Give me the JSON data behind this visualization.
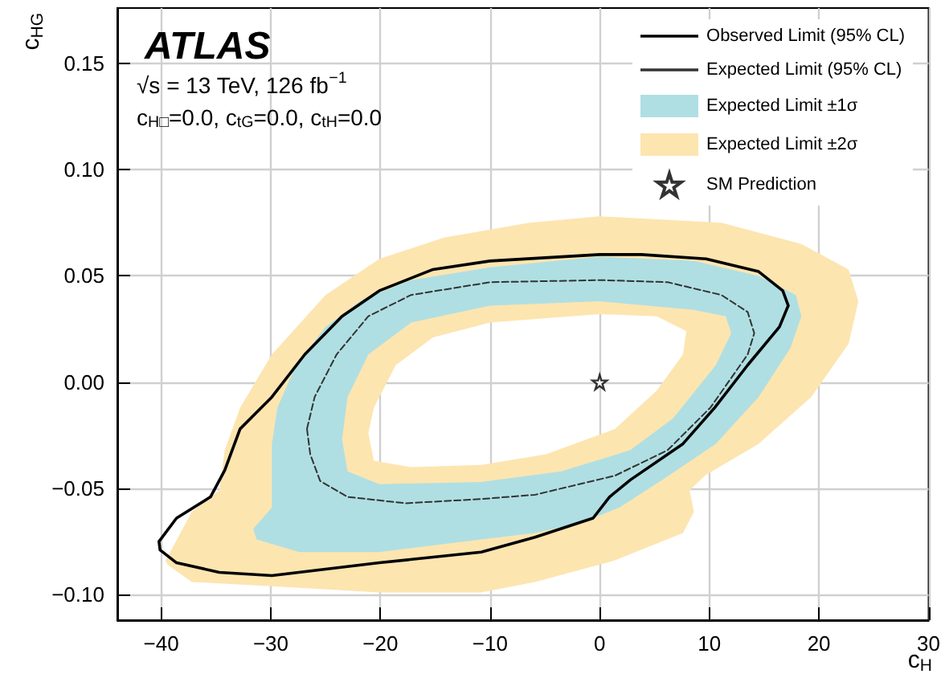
{
  "chart_data": {
    "type": "line",
    "title": "ATLAS",
    "annotations": [
      "√s = 13 TeV, 126 fb$^{−1}$",
      "c$_{H□}$=0.0, c$_{tG}$=0.0, c$_{tH}$=0.0"
    ],
    "xlabel": "c$_{H}$",
    "ylabel": "c$_{HG}$",
    "xlim": [
      -44,
      30
    ],
    "ylim": [
      -0.112,
      0.176
    ],
    "xticks": [
      {
        "value": -40,
        "label": "−40"
      },
      {
        "value": -30,
        "label": "−30"
      },
      {
        "value": -20,
        "label": "−20"
      },
      {
        "value": -10,
        "label": "−10"
      },
      0,
      10,
      20,
      30
    ],
    "yticks": [
      {
        "value": -0.1,
        "label": "−0.10"
      },
      {
        "value": -0.05,
        "label": "−0.05"
      },
      {
        "value": 0,
        "label": "0.00"
      },
      0.05,
      {
        "value": 0.1,
        "label": "0.10"
      },
      0.15
    ],
    "grid": true,
    "legend": "top right",
    "series": [
      {
        "name": "Observed Limit (95% CL)",
        "color": "#000000",
        "line_style": "solid",
        "marker": "none",
        "x": [
          -40.2,
          -38.6,
          -35.5,
          -34.2,
          -32.8,
          -29.9,
          -26.9,
          -23.5,
          -20.1,
          -15.2,
          -10,
          0,
          3.8,
          9.7,
          14.5,
          16.7,
          17.2,
          null,
          -40.2,
          -40.1,
          -38.6,
          -34.7,
          -29.9,
          -20.1,
          -10.8,
          -5.9,
          -0.6,
          0.9,
          2.8,
          7.6,
          10.5,
          13.5,
          16.4,
          17.2
        ],
        "values": [
          -0.075,
          -0.064,
          -0.054,
          -0.0415,
          -0.022,
          -0.007,
          0.013,
          0.031,
          0.043,
          0.053,
          0.057,
          0.06,
          0.06,
          0.058,
          0.052,
          0.043,
          0.036,
          null,
          -0.075,
          -0.079,
          -0.085,
          -0.0895,
          -0.091,
          -0.085,
          -0.08,
          -0.073,
          -0.064,
          -0.054,
          -0.046,
          -0.029,
          -0.012,
          0.008,
          0.026,
          0.036
        ]
      },
      {
        "name": "Expected Limit (95% CL)",
        "color": "#333333",
        "line_style": "dashed",
        "marker": "none",
        "x": [
          -26.7,
          -26,
          -24,
          -21.1,
          -17.2,
          -10,
          0,
          6.2,
          11.1,
          13.5,
          14.1,
          null,
          -26.7,
          -26.4,
          -25.5,
          -23,
          -17.7,
          -10.8,
          -5.9,
          1.4,
          6.2,
          10.1,
          13.5,
          14.1
        ],
        "values": [
          -0.022,
          -0.007,
          0.013,
          0.031,
          0.041,
          0.047,
          0.048,
          0.047,
          0.041,
          0.033,
          0.023,
          null,
          -0.022,
          -0.034,
          -0.0465,
          -0.054,
          -0.057,
          -0.055,
          -0.053,
          -0.044,
          -0.032,
          -0.012,
          0.013,
          0.023
        ]
      },
      {
        "name": "Expected Limit ±1σ",
        "type": "area",
        "color": "#afdfe3",
        "x": [
          -31.6,
          -29.9,
          -29.9,
          -29.4,
          -27.7,
          -25,
          -21.6,
          -17.2,
          -10,
          0,
          8.6,
          14.5,
          17.9,
          18.4,
          17.4,
          14.5,
          10.6,
          5.7,
          1.8,
          -1.6,
          -5.9,
          -10.8,
          -20.1,
          -27.4,
          -31.3,
          null,
          -23,
          -20.1,
          -10.8,
          -3.5,
          2.8,
          6.7,
          10.6,
          12,
          11.5,
          8.6,
          0,
          -10,
          -17.2,
          -21.1,
          -23,
          -23.5
        ],
        "values": [
          -0.069,
          -0.059,
          -0.029,
          -0.012,
          0.008,
          0.026,
          0.039,
          0.048,
          0.054,
          0.059,
          0.057,
          0.05,
          0.041,
          0.031,
          0.016,
          -0.007,
          -0.029,
          -0.046,
          -0.059,
          -0.066,
          -0.071,
          -0.074,
          -0.08,
          -0.08,
          -0.074,
          null,
          -0.042,
          -0.048,
          -0.047,
          -0.042,
          -0.032,
          -0.017,
          0.008,
          0.023,
          0.031,
          0.034,
          0.038,
          0.036,
          0.028,
          0.013,
          -0.007,
          -0.027
        ]
      },
      {
        "name": "Expected Limit ±2σ",
        "type": "area",
        "color": "#fde5b0",
        "x": [
          -39.6,
          -37.2,
          -34.7,
          -34.2,
          -32.8,
          -29.9,
          -25,
          -20.1,
          -14.2,
          -6.4,
          0,
          11.1,
          18.4,
          22.7,
          23.6,
          22.7,
          19.3,
          14.5,
          9.6,
          8.2,
          8.6,
          7.6,
          1.3,
          -5.9,
          -10.8,
          -20.1,
          -29.9,
          -37.2,
          -39.4,
          null,
          -20.6,
          -17.2,
          -10.8,
          -4.9,
          1.4,
          5.2,
          7.6,
          7.9,
          5.2,
          0,
          -10,
          -15.2,
          -18.6,
          -20.6,
          -21.1
        ],
        "values": [
          -0.084,
          -0.061,
          -0.051,
          -0.032,
          -0.012,
          0.013,
          0.041,
          0.058,
          0.068,
          0.075,
          0.078,
          0.075,
          0.065,
          0.053,
          0.038,
          0.018,
          -0.007,
          -0.029,
          -0.044,
          -0.051,
          -0.061,
          -0.071,
          -0.084,
          -0.094,
          -0.099,
          -0.099,
          -0.096,
          -0.094,
          -0.086,
          null,
          -0.037,
          -0.04,
          -0.039,
          -0.034,
          -0.022,
          -0.004,
          0.013,
          0.024,
          0.031,
          0.032,
          0.028,
          0.021,
          0.008,
          -0.012,
          -0.024
        ]
      },
      {
        "name": "SM Prediction",
        "type": "scatter",
        "color": "#000000",
        "marker": "star",
        "x": [
          0
        ],
        "values": [
          0
        ]
      }
    ]
  }
}
